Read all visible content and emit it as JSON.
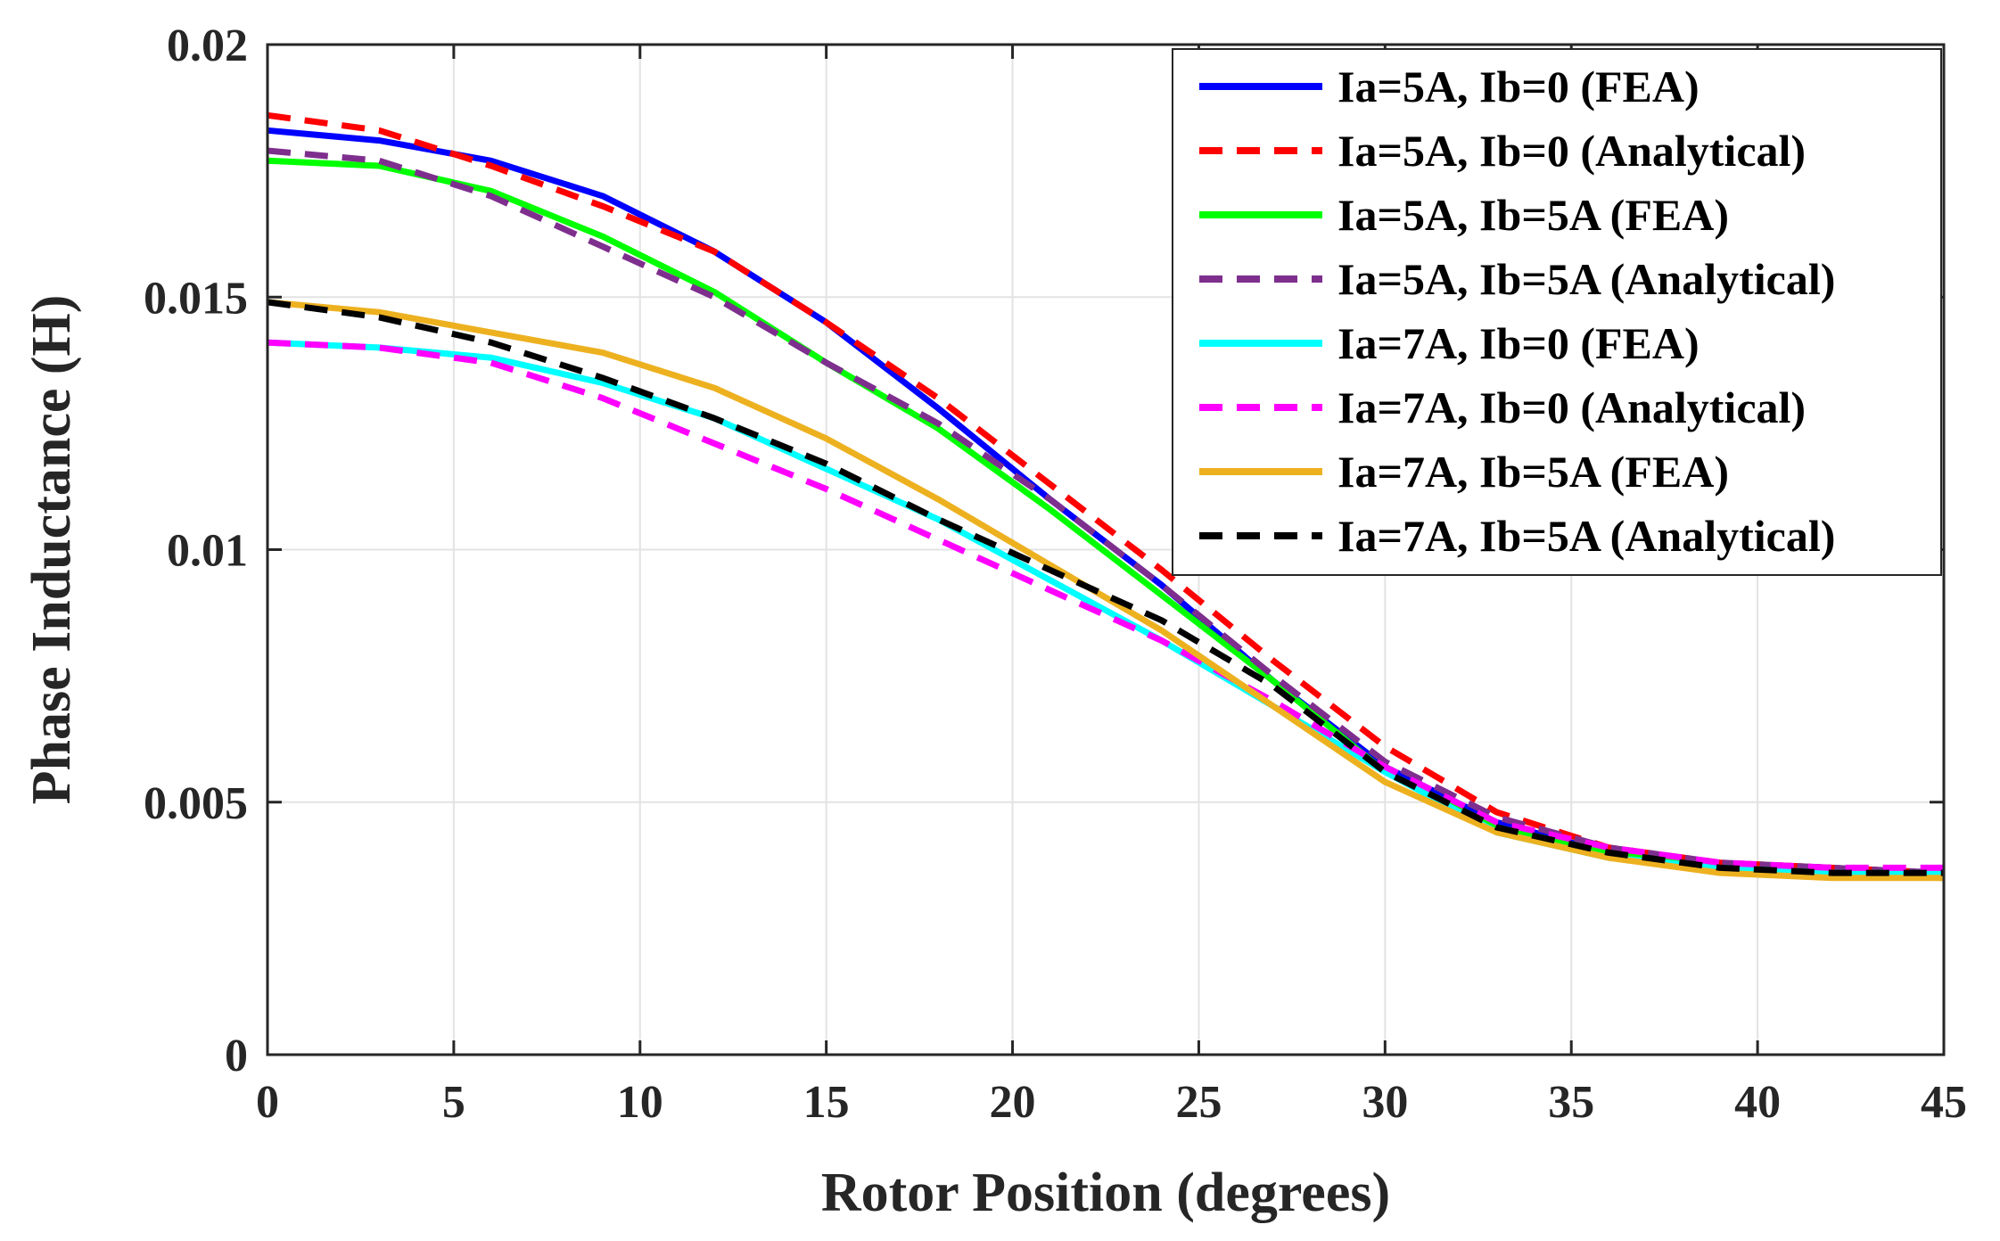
{
  "chart_data": {
    "type": "line",
    "title": "",
    "xlabel": "Rotor Position (degrees)",
    "ylabel": "Phase Inductance (H)",
    "xlim": [
      0,
      45
    ],
    "ylim": [
      0,
      0.02
    ],
    "grid": true,
    "legend_position": "top-right",
    "x_ticks": [
      0,
      5,
      10,
      15,
      20,
      25,
      30,
      35,
      40,
      45
    ],
    "x_tick_labels": [
      "0",
      "5",
      "10",
      "15",
      "20",
      "25",
      "30",
      "35",
      "40",
      "45"
    ],
    "y_ticks": [
      0,
      0.005,
      0.01,
      0.015,
      0.02
    ],
    "y_tick_labels": [
      "0",
      "0.005",
      "0.01",
      "0.015",
      "0.02"
    ],
    "x": [
      0,
      3,
      6,
      9,
      12,
      15,
      18,
      21,
      24,
      27,
      30,
      33,
      36,
      39,
      42,
      45
    ],
    "series": [
      {
        "name": "Ia=5A, Ib=0 (FEA)",
        "color": "#0000ff",
        "dash": "solid",
        "values": [
          0.0183,
          0.0181,
          0.0177,
          0.017,
          0.0159,
          0.0145,
          0.0128,
          0.011,
          0.0093,
          0.0074,
          0.0057,
          0.0046,
          0.004,
          0.0037,
          0.0036,
          0.0035
        ]
      },
      {
        "name": "Ia=5A, Ib=0 (Analytical)",
        "color": "#ff0000",
        "dash": "dashed",
        "values": [
          0.0186,
          0.0183,
          0.0176,
          0.0168,
          0.0159,
          0.0145,
          0.013,
          0.0113,
          0.0096,
          0.0078,
          0.0061,
          0.0048,
          0.0041,
          0.0038,
          0.0037,
          0.0036
        ]
      },
      {
        "name": "Ia=5A, Ib=5A (FEA)",
        "color": "#00ff00",
        "dash": "solid",
        "values": [
          0.0177,
          0.0176,
          0.0171,
          0.0162,
          0.0151,
          0.0137,
          0.0124,
          0.0108,
          0.0091,
          0.0074,
          0.0056,
          0.0045,
          0.004,
          0.0037,
          0.0036,
          0.0035
        ]
      },
      {
        "name": "Ia=5A, Ib=5A (Analytical)",
        "color": "#7e2f8e",
        "dash": "dashed",
        "values": [
          0.0179,
          0.0177,
          0.017,
          0.016,
          0.015,
          0.0137,
          0.0125,
          0.011,
          0.0093,
          0.0075,
          0.0058,
          0.0047,
          0.0041,
          0.0038,
          0.0037,
          0.0036
        ]
      },
      {
        "name": "Ia=7A, Ib=0 (FEA)",
        "color": "#00ffff",
        "dash": "solid",
        "values": [
          0.0141,
          0.014,
          0.0138,
          0.0133,
          0.0126,
          0.0116,
          0.0106,
          0.0094,
          0.0082,
          0.0069,
          0.0056,
          0.0044,
          0.0039,
          0.0037,
          0.0036,
          0.0036
        ]
      },
      {
        "name": "Ia=7A, Ib=0 (Analytical)",
        "color": "#ff00ff",
        "dash": "dashed",
        "values": [
          0.0141,
          0.014,
          0.0137,
          0.013,
          0.0121,
          0.0112,
          0.0102,
          0.0092,
          0.0082,
          0.007,
          0.0057,
          0.0046,
          0.0041,
          0.0038,
          0.0037,
          0.0037
        ]
      },
      {
        "name": "Ia=7A, Ib=5A (FEA)",
        "color": "#edb120",
        "dash": "solid",
        "values": [
          0.0149,
          0.0147,
          0.0143,
          0.0139,
          0.0132,
          0.0122,
          0.011,
          0.0097,
          0.0084,
          0.0069,
          0.0054,
          0.0044,
          0.0039,
          0.0036,
          0.0035,
          0.0035
        ]
      },
      {
        "name": "Ia=7A, Ib=5A (Analytical)",
        "color": "#000000",
        "dash": "dashed",
        "values": [
          0.0149,
          0.0146,
          0.0141,
          0.0134,
          0.0126,
          0.0117,
          0.0106,
          0.0096,
          0.0086,
          0.0073,
          0.0056,
          0.0045,
          0.004,
          0.0037,
          0.0036,
          0.0036
        ]
      }
    ]
  }
}
